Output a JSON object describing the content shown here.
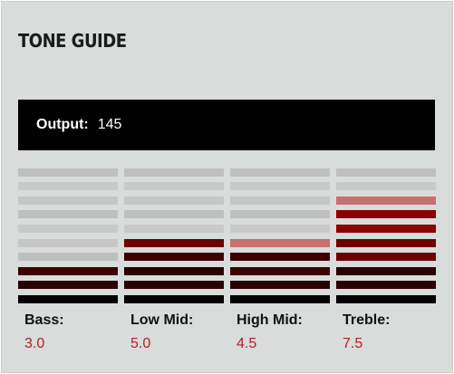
{
  "title": "TONE GUIDE",
  "output": {
    "label": "Output:",
    "value": "145"
  },
  "colors": {
    "panel_bg": "#d8dcdb",
    "value_text": "#b41e1e",
    "segment_off": [
      "#bfbfbf",
      "#c6c6c6",
      "#c9c9c9"
    ],
    "segment_dark": "#2a0000",
    "segment_mid": "#6b0000",
    "segment_bright": "#8a0000",
    "segment_pink": "#c77070",
    "segment_base": "#000000"
  },
  "segment_count": 10,
  "controls": [
    {
      "name": "Bass:",
      "value": "3.0",
      "level": 3.0
    },
    {
      "name": "Low Mid:",
      "value": "5.0",
      "level": 5.0
    },
    {
      "name": "High Mid:",
      "value": "4.5",
      "level": 4.5
    },
    {
      "name": "Treble:",
      "value": "7.5",
      "level": 7.5
    }
  ]
}
